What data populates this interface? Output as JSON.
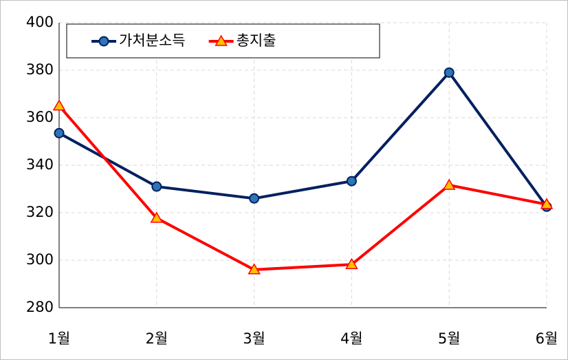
{
  "chart_data": {
    "type": "line",
    "categories": [
      "1월",
      "2월",
      "3월",
      "4월",
      "5월",
      "6월"
    ],
    "series": [
      {
        "name": "가처분소득",
        "color": "#002060",
        "marker": "circle",
        "values": [
          353.5,
          331,
          326,
          333.3,
          379,
          322.5
        ]
      },
      {
        "name": "총지출",
        "color": "#ff0000",
        "marker": "triangle",
        "values": [
          365,
          317.7,
          296,
          298.2,
          331.6,
          323.5
        ]
      }
    ],
    "ylim": [
      280,
      400
    ],
    "yticks": [
      280,
      300,
      320,
      340,
      360,
      380,
      400
    ],
    "grid": true,
    "legend": "top-left"
  }
}
